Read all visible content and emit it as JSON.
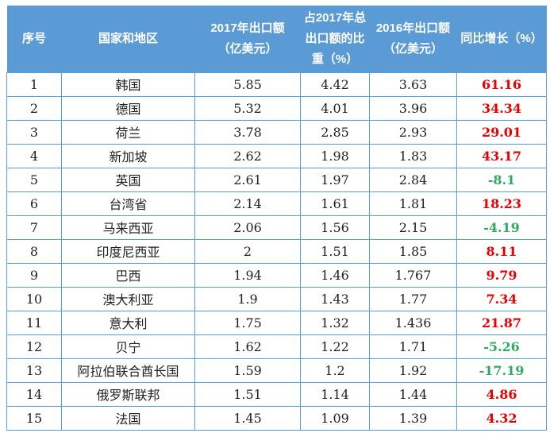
{
  "colors": {
    "header_bg": "#5b9bd5",
    "header_text": "#ffffff",
    "border": "#54a0d8",
    "body_text": "#1f1f1f",
    "growth_positive": "#ea0000",
    "growth_negative": "#31a862",
    "page_bg": "#ffffff"
  },
  "chart_data": {
    "type": "table",
    "columns": [
      {
        "key": "index",
        "label": "序号"
      },
      {
        "key": "country",
        "label": "国家和地区"
      },
      {
        "key": "export_2017",
        "label": "2017年出口额\n（亿美元）"
      },
      {
        "key": "share_2017",
        "label": "占2017年总\n出口额的比\n重（%）"
      },
      {
        "key": "export_2016",
        "label": "2016年出口额\n（亿美元）"
      },
      {
        "key": "yoy_growth",
        "label": "同比增长（%）"
      }
    ],
    "rows": [
      [
        "1",
        "韩国",
        "5.85",
        "4.42",
        "3.63",
        "61.16"
      ],
      [
        "2",
        "德国",
        "5.32",
        "4.01",
        "3.96",
        "34.34"
      ],
      [
        "3",
        "荷兰",
        "3.78",
        "2.85",
        "2.93",
        "29.01"
      ],
      [
        "4",
        "新加坡",
        "2.62",
        "1.98",
        "1.83",
        "43.17"
      ],
      [
        "5",
        "英国",
        "2.61",
        "1.97",
        "2.84",
        "-8.1"
      ],
      [
        "6",
        "台湾省",
        "2.14",
        "1.61",
        "1.81",
        "18.23"
      ],
      [
        "7",
        "马来西亚",
        "2.06",
        "1.56",
        "2.15",
        "-4.19"
      ],
      [
        "8",
        "印度尼西亚",
        "2",
        "1.51",
        "1.85",
        "8.11"
      ],
      [
        "9",
        "巴西",
        "1.94",
        "1.46",
        "1.767",
        "9.79"
      ],
      [
        "10",
        "澳大利亚",
        "1.9",
        "1.43",
        "1.77",
        "7.34"
      ],
      [
        "11",
        "意大利",
        "1.75",
        "1.32",
        "1.436",
        "21.87"
      ],
      [
        "12",
        "贝宁",
        "1.62",
        "1.22",
        "1.71",
        "-5.26"
      ],
      [
        "13",
        "阿拉伯联合酋长国",
        "1.59",
        "1.2",
        "1.92",
        "-17.19"
      ],
      [
        "14",
        "俄罗斯联邦",
        "1.51",
        "1.14",
        "1.44",
        "4.86"
      ],
      [
        "15",
        "法国",
        "1.45",
        "1.09",
        "1.39",
        "4.32"
      ]
    ]
  }
}
